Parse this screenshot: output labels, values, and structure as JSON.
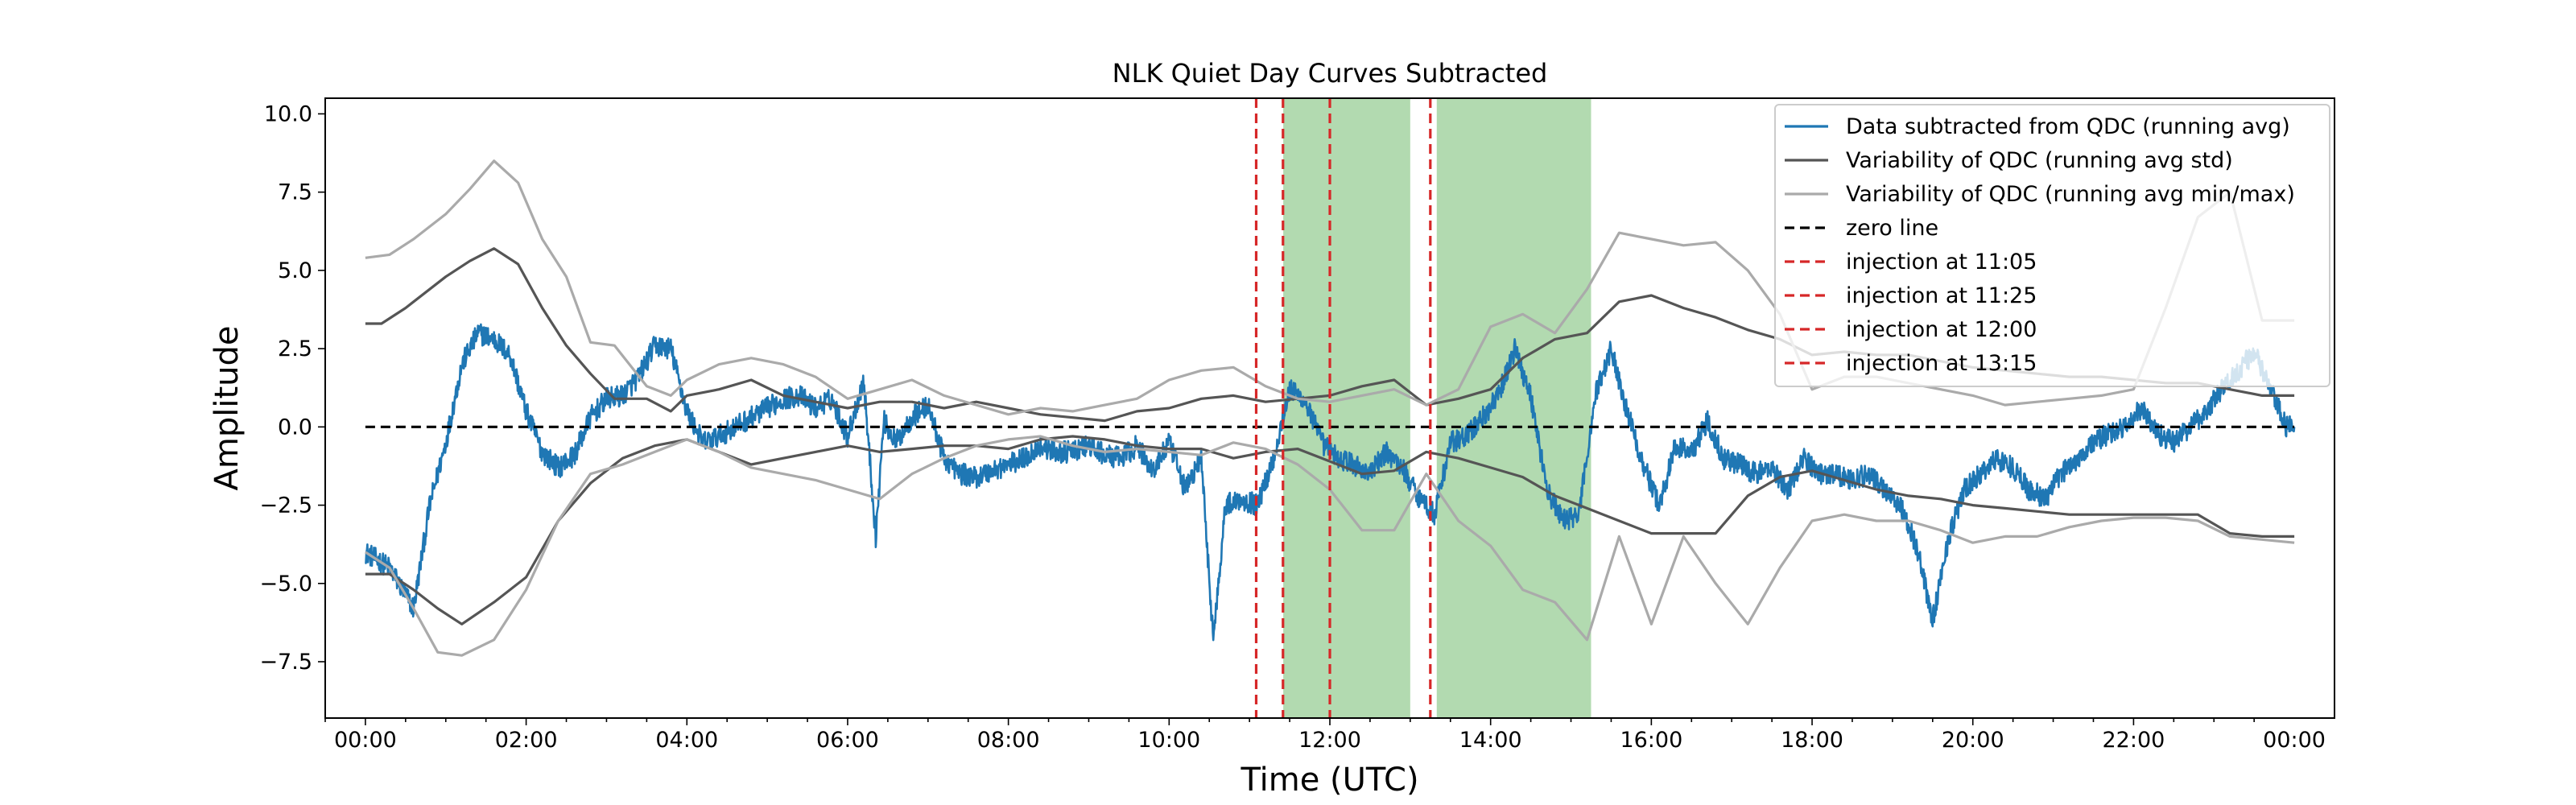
{
  "chart_data": {
    "type": "line",
    "title": "NLK Quiet Day Curves Subtracted",
    "xlabel": "Time (UTC)",
    "ylabel": "Amplitude",
    "xlim_hours": [
      -0.5,
      24.5
    ],
    "ylim": [
      -9.3,
      10.5
    ],
    "x_ticks": [
      {
        "h": 0,
        "label": "00:00"
      },
      {
        "h": 2,
        "label": "02:00"
      },
      {
        "h": 4,
        "label": "04:00"
      },
      {
        "h": 6,
        "label": "06:00"
      },
      {
        "h": 8,
        "label": "08:00"
      },
      {
        "h": 10,
        "label": "10:00"
      },
      {
        "h": 12,
        "label": "12:00"
      },
      {
        "h": 14,
        "label": "14:00"
      },
      {
        "h": 16,
        "label": "16:00"
      },
      {
        "h": 18,
        "label": "18:00"
      },
      {
        "h": 20,
        "label": "20:00"
      },
      {
        "h": 22,
        "label": "22:00"
      },
      {
        "h": 24,
        "label": "00:00"
      }
    ],
    "y_ticks": [
      {
        "v": 10,
        "label": "10.0"
      },
      {
        "v": 7.5,
        "label": "7.5"
      },
      {
        "v": 5,
        "label": "5.0"
      },
      {
        "v": 2.5,
        "label": "2.5"
      },
      {
        "v": 0,
        "label": "0.0"
      },
      {
        "v": -2.5,
        "label": "−2.5"
      },
      {
        "v": -5,
        "label": "−5.0"
      },
      {
        "v": -7.5,
        "label": "−7.5"
      }
    ],
    "grid": false,
    "legend_position": "top-right",
    "shaded_regions": [
      {
        "start_h": 11.42,
        "end_h": 13.0,
        "color": "#b2dab0"
      },
      {
        "start_h": 13.33,
        "end_h": 15.25,
        "color": "#b2dab0"
      }
    ],
    "series": [
      {
        "name": "Data subtracted from QDC (running avg)",
        "color": "#1f77b4",
        "style": "solid",
        "noise": 0.35,
        "x": [
          0,
          0.3,
          0.6,
          0.8,
          1.0,
          1.2,
          1.4,
          1.6,
          1.8,
          2.0,
          2.2,
          2.4,
          2.6,
          2.8,
          3.0,
          3.2,
          3.4,
          3.6,
          3.8,
          4.0,
          4.2,
          4.4,
          4.6,
          4.8,
          5.0,
          5.2,
          5.4,
          5.6,
          5.8,
          6.0,
          6.2,
          6.35,
          6.45,
          6.6,
          6.8,
          7.0,
          7.2,
          7.4,
          7.6,
          7.8,
          8.0,
          8.2,
          8.4,
          8.6,
          8.8,
          9.0,
          9.2,
          9.4,
          9.6,
          9.8,
          10.0,
          10.2,
          10.4,
          10.55,
          10.7,
          10.9,
          11.1,
          11.3,
          11.5,
          11.7,
          11.9,
          12.1,
          12.3,
          12.5,
          12.7,
          12.9,
          13.1,
          13.3,
          13.5,
          13.7,
          13.9,
          14.1,
          14.3,
          14.5,
          14.7,
          14.9,
          15.1,
          15.3,
          15.5,
          15.7,
          15.9,
          16.1,
          16.3,
          16.5,
          16.7,
          16.9,
          17.1,
          17.3,
          17.5,
          17.7,
          17.9,
          18.1,
          18.3,
          18.5,
          18.7,
          18.9,
          19.1,
          19.3,
          19.5,
          19.7,
          19.9,
          20.1,
          20.3,
          20.5,
          20.7,
          20.9,
          21.1,
          21.3,
          21.5,
          21.7,
          21.9,
          22.1,
          22.3,
          22.5,
          22.7,
          22.9,
          23.1,
          23.3,
          23.5,
          23.7,
          23.9,
          24.0
        ],
        "y": [
          -4.0,
          -4.5,
          -5.8,
          -2.5,
          -0.5,
          2.0,
          3.0,
          2.8,
          2.3,
          0.5,
          -0.8,
          -1.3,
          -0.9,
          0.3,
          0.9,
          1.0,
          1.6,
          2.6,
          2.5,
          0.5,
          -0.5,
          -0.3,
          0.0,
          0.3,
          0.6,
          0.9,
          1.0,
          0.6,
          0.9,
          -0.3,
          1.5,
          -3.5,
          0.2,
          -0.5,
          0.3,
          0.7,
          -1.0,
          -1.5,
          -1.6,
          -1.4,
          -1.2,
          -1.0,
          -0.6,
          -0.8,
          -0.8,
          -0.6,
          -0.9,
          -1.0,
          -0.6,
          -1.4,
          -0.5,
          -2.0,
          -1.0,
          -6.8,
          -2.5,
          -2.3,
          -2.5,
          -1.0,
          1.2,
          0.8,
          -0.5,
          -1.0,
          -1.2,
          -1.5,
          -0.8,
          -1.3,
          -2.2,
          -2.8,
          -0.5,
          -0.3,
          0.3,
          1.0,
          2.5,
          1.0,
          -2.0,
          -3.0,
          -2.8,
          1.0,
          2.5,
          0.5,
          -1.2,
          -2.5,
          -0.6,
          -0.8,
          0.2,
          -1.0,
          -1.2,
          -1.5,
          -1.3,
          -2.0,
          -1.0,
          -1.5,
          -1.5,
          -1.7,
          -1.5,
          -2.0,
          -2.5,
          -3.8,
          -6.2,
          -3.5,
          -2.0,
          -1.5,
          -1.0,
          -1.3,
          -2.0,
          -2.3,
          -1.5,
          -1.0,
          -0.5,
          -0.2,
          0.0,
          0.6,
          -0.2,
          -0.5,
          0.0,
          0.5,
          1.2,
          1.8,
          2.4,
          1.2,
          0.0,
          0.0
        ]
      },
      {
        "name": "Variability of QDC (running avg std)",
        "color": "#555555",
        "style": "solid",
        "x": [
          0,
          0.2,
          0.5,
          1.0,
          1.3,
          1.6,
          1.9,
          2.2,
          2.5,
          2.8,
          3.1,
          3.5,
          3.8,
          4.0,
          4.4,
          4.8,
          5.2,
          5.6,
          6.0,
          6.4,
          6.8,
          7.2,
          7.6,
          8.0,
          8.4,
          8.8,
          9.2,
          9.6,
          10.0,
          10.4,
          10.8,
          11.2,
          11.6,
          12.0,
          12.4,
          12.8,
          13.2,
          13.6,
          14.0,
          14.4,
          14.8,
          15.2,
          15.6,
          16.0,
          16.4,
          16.8,
          17.2,
          17.6,
          18.0,
          18.4,
          18.8,
          19.2,
          19.6,
          20.0,
          20.4,
          20.8,
          21.2,
          21.6,
          22.0,
          22.4,
          22.8,
          23.2,
          23.6,
          24.0
        ],
        "y": [
          3.3,
          3.3,
          3.8,
          4.8,
          5.3,
          5.7,
          5.2,
          3.8,
          2.6,
          1.7,
          0.9,
          0.9,
          0.5,
          1.0,
          1.2,
          1.5,
          1.0,
          0.8,
          0.6,
          0.8,
          0.8,
          0.6,
          0.8,
          0.6,
          0.4,
          0.3,
          0.2,
          0.5,
          0.6,
          0.9,
          1.0,
          0.8,
          0.9,
          1.0,
          1.3,
          1.5,
          0.7,
          0.9,
          1.2,
          2.2,
          2.8,
          3.0,
          4.0,
          4.2,
          3.8,
          3.5,
          3.1,
          2.8,
          2.3,
          2.4,
          2.3,
          2.3,
          2.1,
          1.9,
          1.8,
          1.7,
          1.6,
          1.6,
          1.5,
          1.4,
          1.4,
          1.2,
          1.0,
          1.0
        ]
      },
      {
        "name": "",
        "color": "#555555",
        "style": "solid",
        "x": [
          0,
          0.3,
          0.6,
          0.9,
          1.2,
          1.6,
          2.0,
          2.4,
          2.8,
          3.2,
          3.6,
          4.0,
          4.4,
          4.8,
          5.2,
          5.6,
          6.0,
          6.4,
          6.8,
          7.2,
          7.6,
          8.0,
          8.4,
          8.8,
          9.2,
          9.6,
          10.0,
          10.4,
          10.8,
          11.2,
          11.6,
          12.0,
          12.4,
          12.8,
          13.2,
          13.6,
          14.0,
          14.4,
          14.8,
          15.2,
          15.6,
          16.0,
          16.4,
          16.8,
          17.2,
          17.6,
          18.0,
          18.4,
          18.8,
          19.2,
          19.6,
          20.0,
          20.4,
          20.8,
          21.2,
          21.6,
          22.0,
          22.4,
          22.8,
          23.2,
          23.6,
          24.0
        ],
        "y": [
          -4.7,
          -4.7,
          -5.2,
          -5.8,
          -6.3,
          -5.6,
          -4.8,
          -3.0,
          -1.8,
          -1.0,
          -0.6,
          -0.4,
          -0.8,
          -1.2,
          -1.0,
          -0.8,
          -0.6,
          -0.8,
          -0.7,
          -0.6,
          -0.6,
          -0.7,
          -0.4,
          -0.3,
          -0.4,
          -0.6,
          -0.7,
          -0.7,
          -1.0,
          -0.8,
          -0.7,
          -1.1,
          -1.5,
          -1.4,
          -0.8,
          -1.0,
          -1.3,
          -1.6,
          -2.2,
          -2.6,
          -3.0,
          -3.4,
          -3.4,
          -3.4,
          -2.2,
          -1.6,
          -1.4,
          -1.7,
          -2.0,
          -2.2,
          -2.3,
          -2.5,
          -2.6,
          -2.7,
          -2.8,
          -2.8,
          -2.8,
          -2.8,
          -2.8,
          -3.4,
          -3.5,
          -3.5
        ]
      },
      {
        "name": "Variability of QDC (running avg min/max)",
        "color": "#aaaaaa",
        "style": "solid",
        "x": [
          0,
          0.3,
          0.6,
          1.0,
          1.3,
          1.6,
          1.9,
          2.2,
          2.5,
          2.8,
          3.1,
          3.5,
          3.8,
          4.0,
          4.4,
          4.8,
          5.2,
          5.6,
          6.0,
          6.4,
          6.8,
          7.2,
          7.6,
          8.0,
          8.4,
          8.8,
          9.2,
          9.6,
          10.0,
          10.4,
          10.8,
          11.2,
          11.6,
          12.0,
          12.4,
          12.8,
          13.2,
          13.6,
          14.0,
          14.4,
          14.8,
          15.2,
          15.6,
          16.0,
          16.4,
          16.8,
          17.2,
          17.6,
          18.0,
          18.4,
          18.8,
          19.2,
          19.6,
          20.0,
          20.4,
          20.8,
          21.2,
          21.6,
          22.0,
          22.4,
          22.8,
          23.2,
          23.6,
          24.0
        ],
        "y": [
          5.4,
          5.5,
          6.0,
          6.8,
          7.6,
          8.5,
          7.8,
          6.0,
          4.8,
          2.7,
          2.6,
          1.3,
          1.0,
          1.5,
          2.0,
          2.2,
          2.0,
          1.6,
          0.9,
          1.2,
          1.5,
          1.0,
          0.7,
          0.4,
          0.6,
          0.5,
          0.7,
          0.9,
          1.5,
          1.8,
          1.9,
          1.3,
          0.9,
          0.8,
          1.0,
          1.2,
          0.7,
          1.2,
          3.2,
          3.6,
          3.0,
          4.4,
          6.2,
          6.0,
          5.8,
          5.9,
          5.0,
          3.6,
          1.2,
          1.6,
          1.6,
          1.4,
          1.2,
          1.0,
          0.7,
          0.8,
          0.9,
          1.0,
          1.2,
          3.8,
          6.7,
          7.5,
          3.4,
          3.4
        ]
      },
      {
        "name": "",
        "color": "#aaaaaa",
        "style": "solid",
        "x": [
          0,
          0.3,
          0.6,
          0.9,
          1.2,
          1.6,
          2.0,
          2.4,
          2.8,
          3.2,
          3.6,
          4.0,
          4.4,
          4.8,
          5.2,
          5.6,
          6.0,
          6.4,
          6.8,
          7.2,
          7.6,
          8.0,
          8.4,
          8.8,
          9.2,
          9.6,
          10.0,
          10.4,
          10.8,
          11.2,
          11.6,
          12.0,
          12.4,
          12.8,
          13.2,
          13.6,
          14.0,
          14.4,
          14.8,
          15.2,
          15.6,
          16.0,
          16.4,
          16.8,
          17.2,
          17.6,
          18.0,
          18.4,
          18.8,
          19.2,
          19.6,
          20.0,
          20.4,
          20.8,
          21.2,
          21.6,
          22.0,
          22.4,
          22.8,
          23.2,
          23.6,
          24.0
        ],
        "y": [
          -4.0,
          -4.5,
          -5.8,
          -7.2,
          -7.3,
          -6.8,
          -5.2,
          -3.0,
          -1.5,
          -1.2,
          -0.8,
          -0.4,
          -0.8,
          -1.3,
          -1.5,
          -1.7,
          -2.0,
          -2.3,
          -1.5,
          -1.0,
          -0.6,
          -0.4,
          -0.3,
          -0.6,
          -0.8,
          -0.7,
          -0.8,
          -0.9,
          -0.5,
          -0.7,
          -1.2,
          -2.0,
          -3.3,
          -3.3,
          -1.5,
          -3.0,
          -3.8,
          -5.2,
          -5.6,
          -6.8,
          -3.5,
          -6.3,
          -3.5,
          -5.0,
          -6.3,
          -4.5,
          -3.0,
          -2.8,
          -3.0,
          -3.0,
          -3.3,
          -3.7,
          -3.5,
          -3.5,
          -3.2,
          -3.0,
          -2.9,
          -2.9,
          -3.0,
          -3.5,
          -3.6,
          -3.7
        ]
      },
      {
        "name": "zero line",
        "color": "#000000",
        "style": "dashed",
        "x": [
          0,
          24
        ],
        "y": [
          0,
          0
        ]
      }
    ],
    "vertical_lines": [
      {
        "name": "injection at 11:05",
        "h": 11.0833,
        "color": "#d62728"
      },
      {
        "name": "injection at 11:25",
        "h": 11.4167,
        "color": "#d62728"
      },
      {
        "name": "injection at 12:00",
        "h": 12.0,
        "color": "#d62728"
      },
      {
        "name": "injection at 13:15",
        "h": 13.25,
        "color": "#d62728"
      }
    ],
    "legend": [
      {
        "label": "Data subtracted from QDC (running avg)",
        "color": "#1f77b4",
        "style": "solid"
      },
      {
        "label": "Variability of QDC (running avg std)",
        "color": "#555555",
        "style": "solid"
      },
      {
        "label": "Variability of QDC (running avg min/max)",
        "color": "#aaaaaa",
        "style": "solid"
      },
      {
        "label": "zero line",
        "color": "#000000",
        "style": "dashed"
      },
      {
        "label": "injection at 11:05",
        "color": "#d62728",
        "style": "dashed"
      },
      {
        "label": "injection at 11:25",
        "color": "#d62728",
        "style": "dashed"
      },
      {
        "label": "injection at 12:00",
        "color": "#d62728",
        "style": "dashed"
      },
      {
        "label": "injection at 13:15",
        "color": "#d62728",
        "style": "dashed"
      }
    ]
  }
}
